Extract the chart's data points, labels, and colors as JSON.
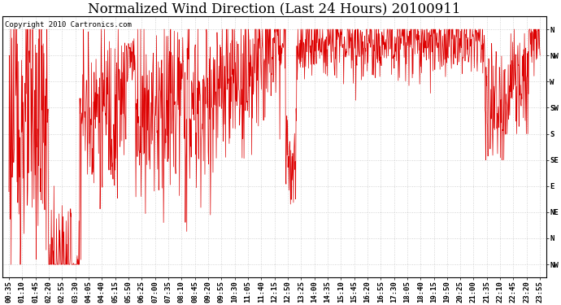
{
  "title": "Normalized Wind Direction (Last 24 Hours) 20100911",
  "copyright_text": "Copyright 2010 Cartronics.com",
  "line_color": "#dd0000",
  "background_color": "#ffffff",
  "plot_bg_color": "#ffffff",
  "grid_color": "#bbbbbb",
  "ytick_labels": [
    "N",
    "NW",
    "W",
    "SW",
    "S",
    "SE",
    "E",
    "NE",
    "N",
    "NW"
  ],
  "ytick_values": [
    9,
    8,
    7,
    6,
    5,
    4,
    3,
    2,
    1,
    0
  ],
  "ylim": [
    -0.5,
    9.5
  ],
  "xtick_labels": [
    "00:35",
    "01:10",
    "01:45",
    "02:20",
    "02:55",
    "03:30",
    "04:05",
    "04:40",
    "05:15",
    "05:50",
    "06:25",
    "07:00",
    "07:35",
    "08:10",
    "08:45",
    "09:20",
    "09:55",
    "10:30",
    "11:05",
    "11:40",
    "12:15",
    "12:50",
    "13:25",
    "14:00",
    "14:35",
    "15:10",
    "15:45",
    "16:20",
    "16:55",
    "17:30",
    "18:05",
    "18:40",
    "19:15",
    "19:50",
    "20:25",
    "21:00",
    "21:35",
    "22:10",
    "22:45",
    "23:20",
    "23:55"
  ],
  "title_fontsize": 12,
  "tick_fontsize": 6.5,
  "copyright_fontsize": 6.5
}
